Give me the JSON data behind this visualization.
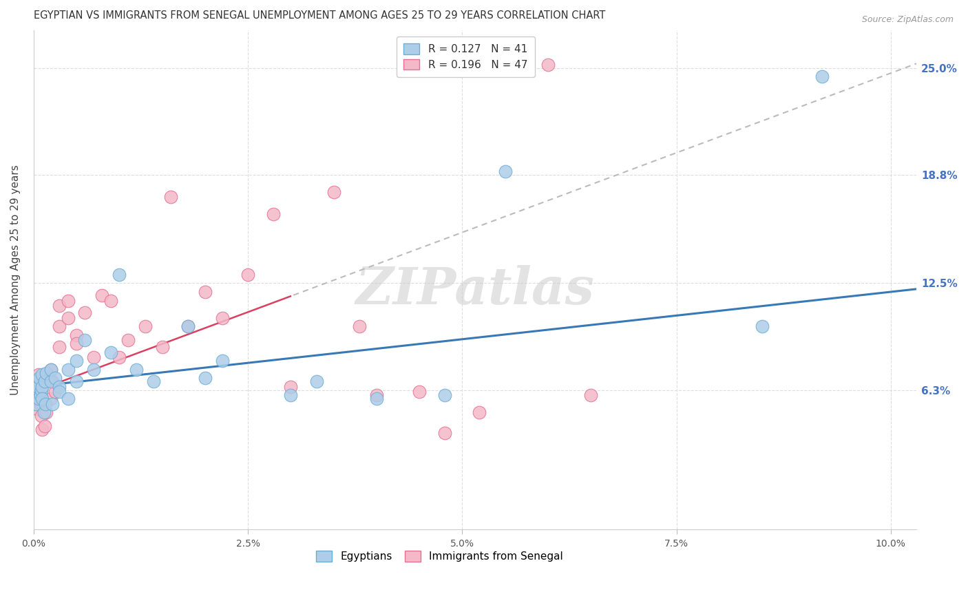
{
  "title": "EGYPTIAN VS IMMIGRANTS FROM SENEGAL UNEMPLOYMENT AMONG AGES 25 TO 29 YEARS CORRELATION CHART",
  "source": "Source: ZipAtlas.com",
  "ylabel": "Unemployment Among Ages 25 to 29 years",
  "xlabel_ticks": [
    "0.0%",
    "2.5%",
    "5.0%",
    "7.5%",
    "10.0%"
  ],
  "xlabel_vals": [
    0.0,
    0.025,
    0.05,
    0.075,
    0.1
  ],
  "ylabel_ticks": [
    "6.3%",
    "12.5%",
    "18.8%",
    "25.0%"
  ],
  "ylabel_vals": [
    0.063,
    0.125,
    0.188,
    0.25
  ],
  "xmin": 0.0,
  "xmax": 0.103,
  "ymin": -0.018,
  "ymax": 0.272,
  "legend_r_blue": "R = 0.127",
  "legend_n_blue": "N = 41",
  "legend_r_pink": "R = 0.196",
  "legend_n_pink": "N = 47",
  "blue_scatter_color": "#aecde8",
  "blue_edge_color": "#6aaed6",
  "pink_scatter_color": "#f4b8c8",
  "pink_edge_color": "#e87090",
  "blue_line_color": "#3878b4",
  "pink_line_color": "#d94060",
  "watermark": "ZIPatlas",
  "blue_intercept": 0.065,
  "blue_slope": 0.55,
  "pink_intercept": 0.062,
  "pink_slope": 1.85,
  "egyptians_x": [
    0.0002,
    0.0003,
    0.0004,
    0.0005,
    0.0006,
    0.0007,
    0.0008,
    0.0009,
    0.001,
    0.001,
    0.001,
    0.0012,
    0.0013,
    0.0014,
    0.0015,
    0.002,
    0.002,
    0.0022,
    0.0025,
    0.003,
    0.003,
    0.004,
    0.004,
    0.005,
    0.005,
    0.006,
    0.007,
    0.009,
    0.01,
    0.012,
    0.014,
    0.018,
    0.02,
    0.022,
    0.03,
    0.033,
    0.04,
    0.048,
    0.055,
    0.085,
    0.092
  ],
  "egyptians_y": [
    0.068,
    0.055,
    0.062,
    0.065,
    0.058,
    0.07,
    0.06,
    0.063,
    0.065,
    0.072,
    0.058,
    0.05,
    0.068,
    0.055,
    0.073,
    0.068,
    0.075,
    0.055,
    0.07,
    0.065,
    0.062,
    0.075,
    0.058,
    0.068,
    0.08,
    0.092,
    0.075,
    0.085,
    0.13,
    0.075,
    0.068,
    0.1,
    0.07,
    0.08,
    0.06,
    0.068,
    0.058,
    0.06,
    0.19,
    0.1,
    0.245
  ],
  "senegal_x": [
    0.0002,
    0.0003,
    0.0004,
    0.0005,
    0.0006,
    0.0007,
    0.0008,
    0.0009,
    0.001,
    0.001,
    0.0012,
    0.0013,
    0.0015,
    0.002,
    0.002,
    0.0022,
    0.0025,
    0.003,
    0.003,
    0.003,
    0.004,
    0.004,
    0.005,
    0.005,
    0.006,
    0.007,
    0.008,
    0.009,
    0.01,
    0.011,
    0.013,
    0.015,
    0.016,
    0.018,
    0.02,
    0.022,
    0.025,
    0.028,
    0.03,
    0.035,
    0.038,
    0.04,
    0.045,
    0.048,
    0.052,
    0.06,
    0.065
  ],
  "senegal_y": [
    0.065,
    0.058,
    0.052,
    0.068,
    0.072,
    0.06,
    0.055,
    0.048,
    0.04,
    0.055,
    0.068,
    0.042,
    0.05,
    0.075,
    0.058,
    0.068,
    0.062,
    0.088,
    0.1,
    0.112,
    0.115,
    0.105,
    0.095,
    0.09,
    0.108,
    0.082,
    0.118,
    0.115,
    0.082,
    0.092,
    0.1,
    0.088,
    0.175,
    0.1,
    0.12,
    0.105,
    0.13,
    0.165,
    0.065,
    0.178,
    0.1,
    0.06,
    0.062,
    0.038,
    0.05,
    0.252,
    0.06
  ]
}
